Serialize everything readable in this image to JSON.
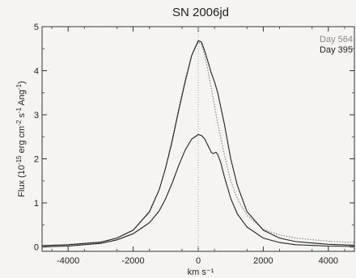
{
  "chart_data": {
    "type": "line",
    "title": "SN 2006jd",
    "xlabel": "km s⁻¹",
    "ylabel_parts": [
      "Flux (10",
      "-15",
      " erg cm",
      "-2",
      " s",
      "-1",
      " Ang",
      "-1",
      ")"
    ],
    "xlim": [
      -4800,
      4800
    ],
    "ylim": [
      -0.1,
      5.0
    ],
    "x_ticks": [
      -4000,
      -2000,
      0,
      2000,
      4000
    ],
    "y_ticks": [
      0,
      1,
      2,
      3,
      4,
      5
    ],
    "x_ticks_labels": [
      "-4000",
      "-2000",
      "0",
      "2000",
      "4000"
    ],
    "y_ticks_labels": [
      "0",
      "1",
      "2",
      "3",
      "4",
      "5"
    ],
    "reference_line_x": 0,
    "legend_position": "top-right",
    "series": [
      {
        "name": "Day 564",
        "color": "#8a8a8a",
        "style": "dotted",
        "x": [
          -4800,
          -4000,
          -3000,
          -2500,
          -2000,
          -1500,
          -1200,
          -1000,
          -800,
          -600,
          -400,
          -200,
          0,
          100,
          200,
          300,
          400,
          600,
          800,
          1000,
          1200,
          1500,
          2000,
          2500,
          3000,
          4000,
          4800
        ],
        "y": [
          0.02,
          0.04,
          0.1,
          0.2,
          0.38,
          0.78,
          1.3,
          1.8,
          2.45,
          3.15,
          3.8,
          4.35,
          4.65,
          4.6,
          4.35,
          4.0,
          3.6,
          2.8,
          2.1,
          1.5,
          1.1,
          0.72,
          0.4,
          0.27,
          0.2,
          0.13,
          0.1
        ]
      },
      {
        "name": "Day 395",
        "color": "#222222",
        "style": "solid",
        "x": [
          -4800,
          -4000,
          -3000,
          -2500,
          -2000,
          -1500,
          -1200,
          -1000,
          -800,
          -600,
          -400,
          -200,
          0,
          100,
          200,
          300,
          400,
          450,
          500,
          550,
          600,
          700,
          800,
          1000,
          1200,
          1500,
          2000,
          2500,
          3000,
          4000,
          4800
        ],
        "y": [
          0.0,
          0.02,
          0.08,
          0.16,
          0.3,
          0.55,
          0.82,
          1.1,
          1.45,
          1.85,
          2.2,
          2.45,
          2.55,
          2.53,
          2.45,
          2.3,
          2.15,
          2.12,
          2.13,
          2.15,
          2.1,
          1.9,
          1.6,
          1.1,
          0.75,
          0.45,
          0.2,
          0.1,
          0.05,
          0.02,
          0.01
        ]
      },
      {
        "name": "",
        "color": "#222222",
        "style": "solid",
        "x": [
          -4800,
          -4000,
          -3000,
          -2500,
          -2000,
          -1500,
          -1200,
          -1000,
          -800,
          -600,
          -400,
          -200,
          0,
          100,
          200,
          300,
          400,
          500,
          600,
          800,
          1000,
          1200,
          1500,
          2000,
          2500,
          3000,
          4000,
          4800
        ],
        "y": [
          0.03,
          0.05,
          0.11,
          0.2,
          0.38,
          0.8,
          1.3,
          1.8,
          2.4,
          3.1,
          3.75,
          4.35,
          4.68,
          4.65,
          4.45,
          4.2,
          3.95,
          3.75,
          3.5,
          2.8,
          2.0,
          1.4,
          0.8,
          0.38,
          0.2,
          0.12,
          0.06,
          0.04
        ]
      }
    ]
  }
}
